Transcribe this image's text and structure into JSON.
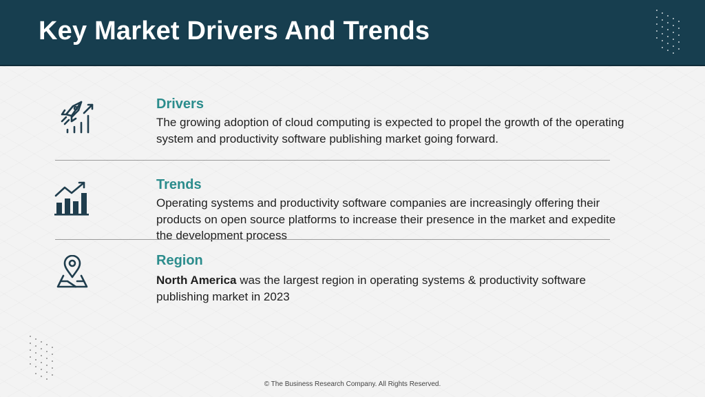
{
  "header": {
    "title": "Key Market Drivers And Trends"
  },
  "sections": [
    {
      "icon": "rocket-growth-icon",
      "title": "Drivers",
      "text": "The growing adoption of cloud computing is expected to propel the growth of the operating system and productivity software publishing market going forward."
    },
    {
      "icon": "bar-chart-up-icon",
      "title": "Trends",
      "text": "Operating systems and productivity software companies are increasingly offering their products on open source platforms to increase their presence in the market and expedite the development process"
    },
    {
      "icon": "map-pin-icon",
      "title": "Region",
      "highlight": "North America",
      "text": " was the largest region in operating systems & productivity software publishing market in 2023"
    }
  ],
  "footer": {
    "text": "© The Business Research Company. All Rights Reserved."
  },
  "colors": {
    "header_bg": "#173e4f",
    "accent": "#2b8c8c",
    "icon": "#1f3d4d"
  }
}
